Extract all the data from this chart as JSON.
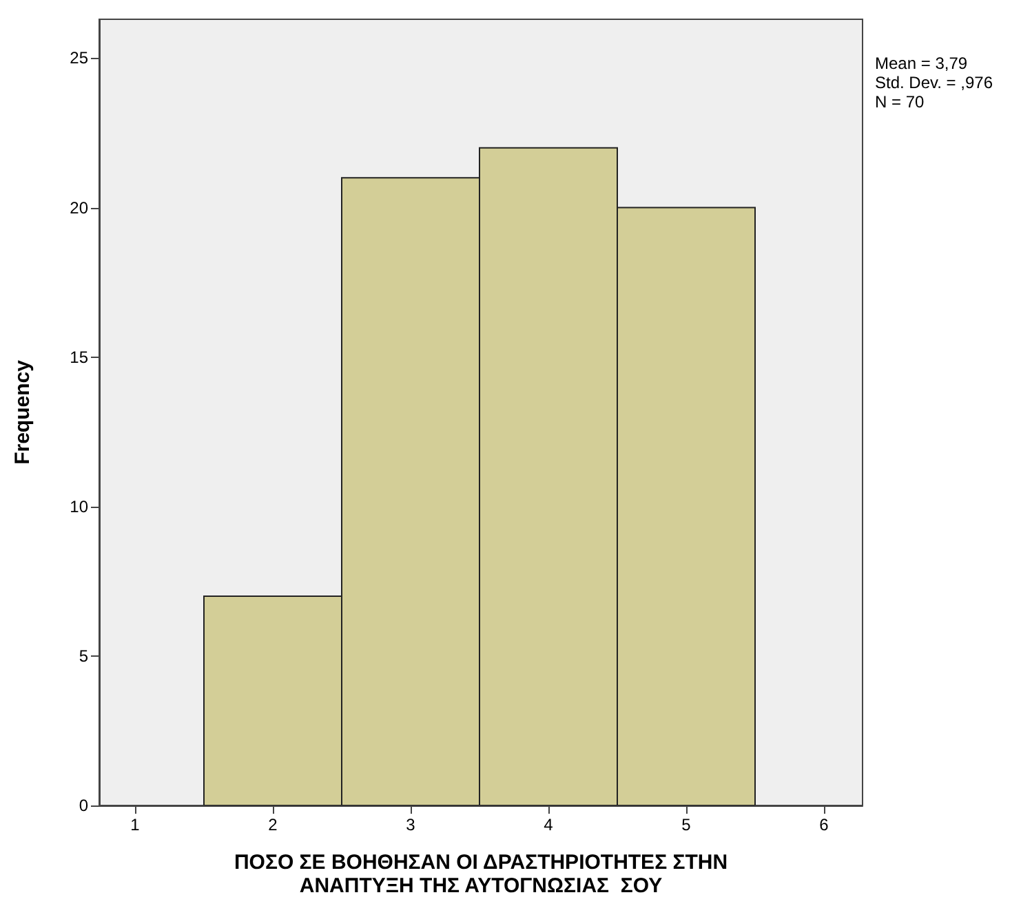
{
  "chart_data": {
    "type": "histogram",
    "xlabel": "ΠΟΣΟ ΣΕ ΒΟΗΘΗΣΑΝ ΟΙ ΔΡΑΣΤΗΡΙΟΤΗΤΕΣ ΣΤΗΝ\nΑΝΑΠΤΥΞΗ ΤΗΣ ΑΥΤΟΓΝΩΣΙΑΣ  ΣΟΥ",
    "ylabel": "Frequency",
    "annotations": [
      "Mean = 3,79",
      "Std. Dev. = ,976",
      "N = 70"
    ],
    "bins": [
      1.5,
      2.5,
      3.5,
      4.5,
      5.5
    ],
    "values": [
      7,
      21,
      22,
      20
    ],
    "color": "#d3ce97",
    "xlim": [
      0.74,
      6.28
    ],
    "xticks": [
      1,
      2,
      3,
      4,
      5,
      6
    ],
    "ylim": [
      0,
      26.3
    ],
    "yticks": [
      0,
      5,
      10,
      15,
      20,
      25
    ],
    "grid": false
  }
}
